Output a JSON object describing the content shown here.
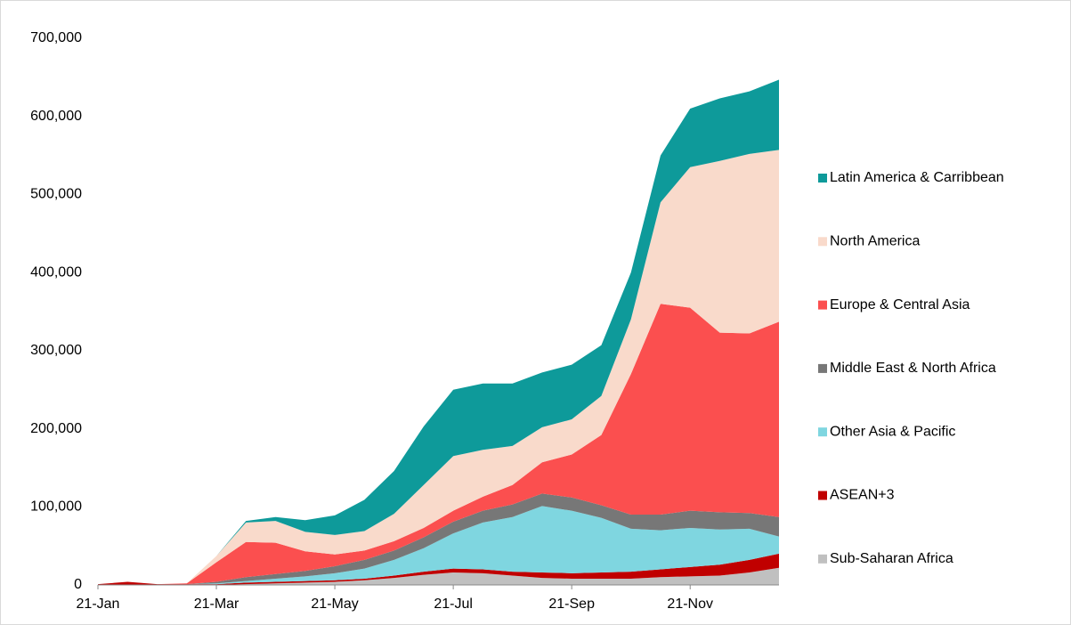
{
  "chart_data": {
    "type": "stacked-area",
    "x": [
      "21-Jan",
      "6-Feb",
      "21-Feb",
      "6-Mar",
      "21-Mar",
      "6-Apr",
      "21-Apr",
      "6-May",
      "21-May",
      "6-Jun",
      "21-Jun",
      "6-Jul",
      "21-Jul",
      "6-Aug",
      "21-Aug",
      "6-Sep",
      "21-Sep",
      "6-Oct",
      "21-Oct",
      "6-Nov",
      "21-Nov",
      "6-Dec",
      "21-Dec",
      "6-Jan"
    ],
    "xticks": [
      "21-Jan",
      "21-Mar",
      "21-May",
      "21-Jul",
      "21-Sep",
      "21-Nov"
    ],
    "ylim": [
      0,
      700000
    ],
    "yticks": [
      0,
      {
        "value": 100000,
        "label": "100,000"
      },
      {
        "value": 200000,
        "label": "200,000"
      },
      {
        "value": 300000,
        "label": "300,000"
      },
      {
        "value": 400000,
        "label": "400,000"
      },
      {
        "value": 500000,
        "label": "500,000"
      },
      {
        "value": 600000,
        "label": "600,000"
      },
      {
        "value": 700000,
        "label": "700,000"
      }
    ],
    "grid": false,
    "legend": "right",
    "series": [
      {
        "name": "Sub-Saharan Africa",
        "color": "#c0c0c0",
        "values": [
          0,
          0,
          0,
          0,
          0,
          1000,
          2000,
          3000,
          4000,
          6000,
          9000,
          13000,
          16000,
          15000,
          12000,
          9000,
          8000,
          8000,
          8000,
          10000,
          11000,
          12000,
          16000,
          22000
        ]
      },
      {
        "name": "ASEAN+3",
        "color": "#c00000",
        "values": [
          1000,
          4000,
          1000,
          1000,
          1000,
          2000,
          2000,
          2000,
          2000,
          2000,
          3000,
          4000,
          5000,
          5000,
          5000,
          7000,
          7000,
          8000,
          9000,
          10000,
          12000,
          14000,
          16000,
          18000
        ]
      },
      {
        "name": "Other Asia & Pacific",
        "color": "#7fd6e0",
        "values": [
          0,
          0,
          0,
          0,
          1000,
          2000,
          4000,
          6000,
          9000,
          13000,
          20000,
          30000,
          45000,
          60000,
          70000,
          85000,
          80000,
          70000,
          55000,
          50000,
          50000,
          45000,
          40000,
          22000
        ]
      },
      {
        "name": "Middle East & North Africa",
        "color": "#777777",
        "values": [
          0,
          0,
          0,
          0,
          2000,
          5000,
          6000,
          7000,
          9000,
          11000,
          12000,
          14000,
          15000,
          15000,
          16000,
          16000,
          17000,
          16000,
          18000,
          20000,
          22000,
          22000,
          20000,
          25000
        ]
      },
      {
        "name": "Europe & Central Asia",
        "color": "#fb4f4f",
        "values": [
          0,
          0,
          0,
          1000,
          25000,
          45000,
          40000,
          25000,
          15000,
          12000,
          12000,
          12000,
          14000,
          18000,
          25000,
          40000,
          55000,
          90000,
          180000,
          270000,
          260000,
          230000,
          230000,
          250000
        ]
      },
      {
        "name": "North America",
        "color": "#f9dacb",
        "values": [
          0,
          0,
          0,
          0,
          8000,
          25000,
          28000,
          25000,
          25000,
          25000,
          35000,
          55000,
          70000,
          60000,
          50000,
          45000,
          45000,
          50000,
          70000,
          130000,
          180000,
          220000,
          230000,
          220000
        ]
      },
      {
        "name": "Latin America & Carribbean",
        "color": "#0e9a9a",
        "values": [
          0,
          0,
          0,
          0,
          0,
          2000,
          5000,
          15000,
          25000,
          40000,
          55000,
          75000,
          85000,
          85000,
          80000,
          70000,
          70000,
          65000,
          60000,
          60000,
          75000,
          80000,
          80000,
          90000
        ]
      }
    ]
  }
}
